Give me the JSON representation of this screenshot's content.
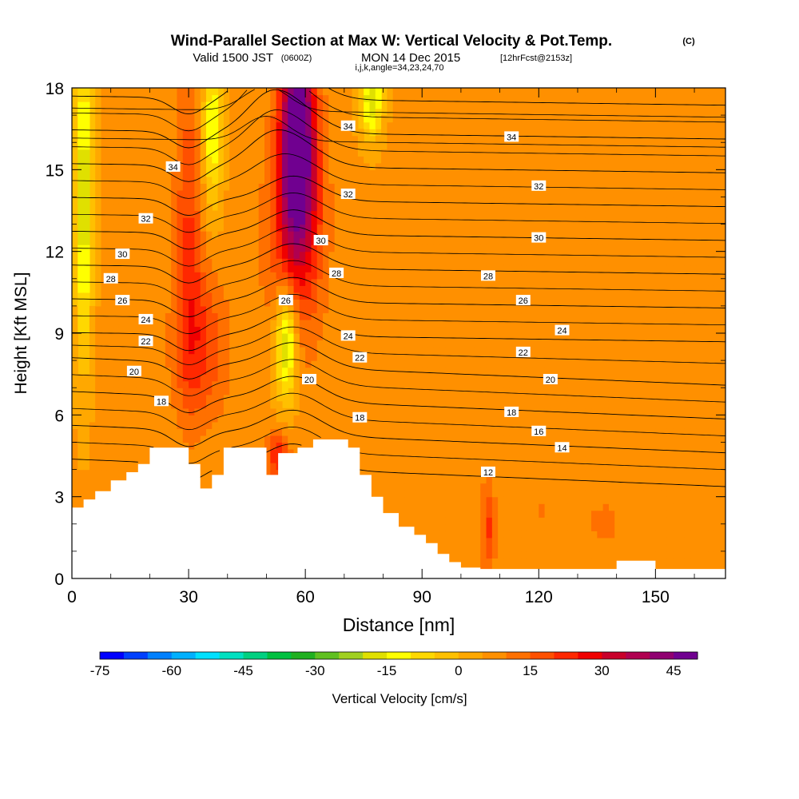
{
  "chart_data": {
    "type": "heatmap",
    "title": "Wind-Parallel Section at Max W: Vertical Velocity & Pot.Temp.",
    "title_mark": "(C)",
    "subtitle_main": "Valid 1500 JST",
    "subtitle_utc": "(0600Z)",
    "subtitle_date": "MON 14 Dec 2015",
    "subtitle_fcst": "[12hrFcst@2153z]",
    "subtitle2": "i,j,k,angle=34,23,24,70",
    "xlabel": "Distance [nm]",
    "ylabel": "Height [Kft MSL]",
    "xlim": [
      0,
      168
    ],
    "ylim": [
      0,
      18
    ],
    "xticks": [
      "0",
      "30",
      "60",
      "90",
      "120",
      "150"
    ],
    "xtick_values": [
      0,
      30,
      60,
      90,
      120,
      150
    ],
    "yticks": [
      "0",
      "3",
      "6",
      "9",
      "12",
      "15",
      "18"
    ],
    "ytick_values": [
      0,
      3,
      6,
      9,
      12,
      15,
      18
    ],
    "colorbar": {
      "label": "Vertical Velocity [cm/s]",
      "range": [
        -75,
        50
      ],
      "step": 5,
      "tick_labels": [
        "-75",
        "-60",
        "-45",
        "-30",
        "-15",
        "0",
        "15",
        "30",
        "45"
      ],
      "tick_values": [
        -75,
        -60,
        -45,
        -30,
        -15,
        0,
        15,
        30,
        45
      ],
      "colors": [
        "#0000ff",
        "#0040ff",
        "#0080ff",
        "#00b0ff",
        "#00e0ff",
        "#00e0c0",
        "#00d080",
        "#00c040",
        "#20b020",
        "#60c020",
        "#a0d020",
        "#e0e000",
        "#ffff00",
        "#ffd800",
        "#ffc000",
        "#ffa800",
        "#ff9000",
        "#ff7000",
        "#ff5000",
        "#ff2800",
        "#f00000",
        "#c8002a",
        "#b00050",
        "#900070",
        "#700090"
      ]
    },
    "contour_field": "potential temperature",
    "contour_levels": [
      12,
      14,
      16,
      18,
      20,
      22,
      24,
      26,
      28,
      30,
      32,
      34
    ],
    "contour_labels": [
      {
        "text": "34",
        "x": 26,
        "y": 15.1
      },
      {
        "text": "34",
        "x": 71,
        "y": 16.6
      },
      {
        "text": "34",
        "x": 113,
        "y": 16.2
      },
      {
        "text": "32",
        "x": 19,
        "y": 13.2
      },
      {
        "text": "32",
        "x": 71,
        "y": 14.1
      },
      {
        "text": "32",
        "x": 120,
        "y": 14.4
      },
      {
        "text": "30",
        "x": 13,
        "y": 11.9
      },
      {
        "text": "30",
        "x": 64,
        "y": 12.4
      },
      {
        "text": "30",
        "x": 120,
        "y": 12.5
      },
      {
        "text": "28",
        "x": 10,
        "y": 11.0
      },
      {
        "text": "28",
        "x": 68,
        "y": 11.2
      },
      {
        "text": "28",
        "x": 107,
        "y": 11.1
      },
      {
        "text": "26",
        "x": 13,
        "y": 10.2
      },
      {
        "text": "26",
        "x": 55,
        "y": 10.2
      },
      {
        "text": "26",
        "x": 116,
        "y": 10.2
      },
      {
        "text": "24",
        "x": 19,
        "y": 9.5
      },
      {
        "text": "24",
        "x": 71,
        "y": 8.9
      },
      {
        "text": "24",
        "x": 126,
        "y": 9.1
      },
      {
        "text": "22",
        "x": 19,
        "y": 8.7
      },
      {
        "text": "22",
        "x": 74,
        "y": 8.1
      },
      {
        "text": "22",
        "x": 116,
        "y": 8.3
      },
      {
        "text": "20",
        "x": 16,
        "y": 7.6
      },
      {
        "text": "20",
        "x": 61,
        "y": 7.3
      },
      {
        "text": "20",
        "x": 123,
        "y": 7.3
      },
      {
        "text": "18",
        "x": 23,
        "y": 6.5
      },
      {
        "text": "18",
        "x": 74,
        "y": 5.9
      },
      {
        "text": "18",
        "x": 113,
        "y": 6.1
      },
      {
        "text": "16",
        "x": 120,
        "y": 5.4
      },
      {
        "text": "14",
        "x": 126,
        "y": 4.8
      },
      {
        "text": "12",
        "x": 107,
        "y": 3.9
      }
    ],
    "terrain": [
      [
        0,
        2.6
      ],
      [
        3,
        2.9
      ],
      [
        6,
        3.2
      ],
      [
        10,
        3.6
      ],
      [
        14,
        3.9
      ],
      [
        17,
        4.2
      ],
      [
        20,
        4.8
      ],
      [
        26,
        4.8
      ],
      [
        29,
        4.8
      ],
      [
        30,
        4.2
      ],
      [
        33,
        3.3
      ],
      [
        36,
        3.8
      ],
      [
        39,
        4.8
      ],
      [
        44,
        4.8
      ],
      [
        49,
        4.8
      ],
      [
        50,
        3.8
      ],
      [
        53,
        4.6
      ],
      [
        58,
        4.8
      ],
      [
        62,
        5.1
      ],
      [
        68,
        5.1
      ],
      [
        71,
        4.8
      ],
      [
        74,
        3.8
      ],
      [
        77,
        3.0
      ],
      [
        80,
        2.4
      ],
      [
        84,
        1.9
      ],
      [
        88,
        1.6
      ],
      [
        91,
        1.3
      ],
      [
        94,
        0.9
      ],
      [
        97,
        0.6
      ],
      [
        100,
        0.4
      ],
      [
        105,
        0.35
      ],
      [
        140,
        0.65
      ],
      [
        148,
        0.65
      ],
      [
        150,
        0.35
      ],
      [
        168,
        0.35
      ]
    ],
    "vv_features": [
      {
        "x": 58,
        "y": 17.0,
        "value": 45,
        "sx": 3,
        "sy": 2.5
      },
      {
        "x": 58,
        "y": 14.0,
        "value": 30,
        "sx": 4,
        "sy": 2.5
      },
      {
        "x": 57,
        "y": 11.5,
        "value": 15,
        "sx": 6,
        "sy": 3
      },
      {
        "x": 33,
        "y": 8.5,
        "value": 20,
        "sx": 5,
        "sy": 2
      },
      {
        "x": 30,
        "y": 13.0,
        "value": 20,
        "sx": 2.5,
        "sy": 4
      },
      {
        "x": 55,
        "y": 8.6,
        "value": -25,
        "sx": 2,
        "sy": 1.5
      },
      {
        "x": 3,
        "y": 14.0,
        "value": -20,
        "sx": 1.6,
        "sy": 4
      },
      {
        "x": 36,
        "y": 16.5,
        "value": -15,
        "sx": 1.8,
        "sy": 2
      },
      {
        "x": 77,
        "y": 17.6,
        "value": -20,
        "sx": 2,
        "sy": 1
      },
      {
        "x": 107,
        "y": 1.8,
        "value": 20,
        "sx": 1.2,
        "sy": 1.2
      },
      {
        "x": 53,
        "y": 4.5,
        "value": 25,
        "sx": 2,
        "sy": 0.6
      },
      {
        "x": 138,
        "y": 2.0,
        "value": 10,
        "sx": 6,
        "sy": 1.5
      },
      {
        "x": 120,
        "y": 2.5,
        "value": 10,
        "sx": 8,
        "sy": 1.5
      },
      {
        "x": 15,
        "y": 5.0,
        "value": 8,
        "sx": 4,
        "sy": 1
      }
    ]
  }
}
